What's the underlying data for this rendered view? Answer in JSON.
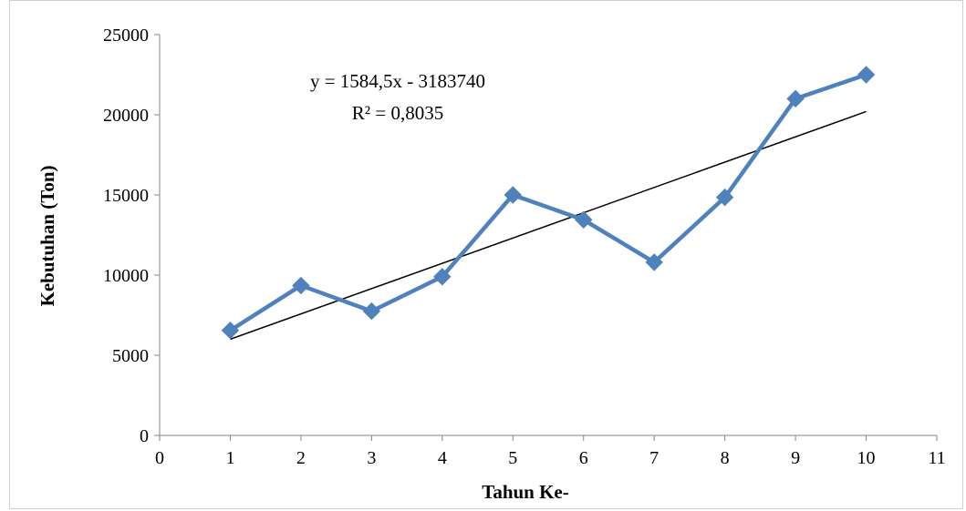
{
  "chart_data": {
    "type": "line",
    "xlabel": "Tahun Ke-",
    "ylabel": "Kebutuhan (Ton)",
    "xlim": [
      0,
      11
    ],
    "ylim": [
      0,
      25000
    ],
    "x_ticks": [
      "0",
      "1",
      "2",
      "3",
      "4",
      "5",
      "6",
      "7",
      "8",
      "9",
      "10",
      "11"
    ],
    "y_ticks": [
      "0",
      "5000",
      "10000",
      "15000",
      "20000",
      "25000"
    ],
    "grid": false,
    "legend": "none",
    "series": [
      {
        "x": [
          1,
          2,
          3,
          4,
          5,
          6,
          7,
          8,
          9,
          10
        ],
        "values": [
          6550,
          9350,
          7750,
          9900,
          15000,
          13450,
          10800,
          14850,
          21000,
          22500
        ],
        "color": "#4F81BD",
        "marker": "diamond"
      }
    ],
    "trendline": {
      "type": "linear",
      "x": [
        1,
        10
      ],
      "values": [
        6000,
        20200
      ],
      "color": "#000000"
    },
    "annotations": {
      "equation": "y = 1584,5x - 3183740",
      "r_squared": "R² = 0,8035"
    }
  }
}
